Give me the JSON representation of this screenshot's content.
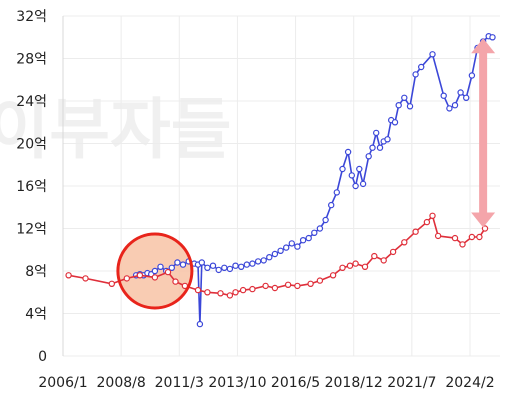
{
  "chart_data": {
    "type": "line",
    "title": "",
    "xlabel": "",
    "ylabel": "",
    "y_unit": "억",
    "ylim": [
      0,
      32
    ],
    "y_ticks": [
      0,
      4,
      8,
      12,
      16,
      20,
      24,
      28,
      32
    ],
    "y_tick_labels": [
      "0",
      "4억",
      "8억",
      "12억",
      "16억",
      "20억",
      "24억",
      "28억",
      "32억"
    ],
    "x_ticks": [
      "2006/1",
      "2008/8",
      "2011/3",
      "2013/10",
      "2016/5",
      "2018/12",
      "2021/7",
      "2024/2"
    ],
    "xlim": [
      "2006-01",
      "2025-06"
    ],
    "grid": true,
    "watermark": "이부자들",
    "colors": {
      "series_1": "#3b47d8",
      "series_2": "#df2f3a",
      "highlight_circle": "#e8241b",
      "highlight_fill": "#f8c3a6",
      "gap_arrow": "#f4a5aa"
    },
    "series": [
      {
        "name": "",
        "color": "#3b47d8",
        "points": [
          [
            "2009-04",
            7.6
          ],
          [
            "2009-06",
            7.7
          ],
          [
            "2009-08",
            7.6
          ],
          [
            "2009-10",
            7.8
          ],
          [
            "2009-12",
            7.7
          ],
          [
            "2010-02",
            8.0
          ],
          [
            "2010-05",
            8.4
          ],
          [
            "2010-08",
            8.0
          ],
          [
            "2010-11",
            8.3
          ],
          [
            "2011-02",
            8.8
          ],
          [
            "2011-05",
            8.6
          ],
          [
            "2011-08",
            8.9
          ],
          [
            "2011-11",
            8.7
          ],
          [
            "2012-01",
            8.6
          ],
          [
            "2012-02",
            3.0
          ],
          [
            "2012-03",
            8.8
          ],
          [
            "2012-06",
            8.3
          ],
          [
            "2012-09",
            8.5
          ],
          [
            "2012-12",
            8.1
          ],
          [
            "2013-03",
            8.3
          ],
          [
            "2013-06",
            8.2
          ],
          [
            "2013-09",
            8.5
          ],
          [
            "2013-12",
            8.4
          ],
          [
            "2014-03",
            8.6
          ],
          [
            "2014-06",
            8.7
          ],
          [
            "2014-09",
            8.9
          ],
          [
            "2014-12",
            9.0
          ],
          [
            "2015-03",
            9.3
          ],
          [
            "2015-06",
            9.6
          ],
          [
            "2015-09",
            9.9
          ],
          [
            "2015-12",
            10.2
          ],
          [
            "2016-03",
            10.6
          ],
          [
            "2016-06",
            10.3
          ],
          [
            "2016-09",
            10.9
          ],
          [
            "2016-12",
            11.1
          ],
          [
            "2017-03",
            11.6
          ],
          [
            "2017-06",
            12.0
          ],
          [
            "2017-09",
            12.8
          ],
          [
            "2017-12",
            14.2
          ],
          [
            "2018-03",
            15.4
          ],
          [
            "2018-06",
            17.6
          ],
          [
            "2018-09",
            19.2
          ],
          [
            "2018-11",
            17.0
          ],
          [
            "2019-01",
            16.0
          ],
          [
            "2019-03",
            17.6
          ],
          [
            "2019-05",
            16.2
          ],
          [
            "2019-08",
            18.8
          ],
          [
            "2019-10",
            19.6
          ],
          [
            "2019-12",
            21.0
          ],
          [
            "2020-02",
            19.6
          ],
          [
            "2020-04",
            20.2
          ],
          [
            "2020-06",
            20.4
          ],
          [
            "2020-08",
            22.2
          ],
          [
            "2020-10",
            22.0
          ],
          [
            "2020-12",
            23.6
          ],
          [
            "2021-03",
            24.3
          ],
          [
            "2021-06",
            23.5
          ],
          [
            "2021-09",
            26.5
          ],
          [
            "2021-12",
            27.2
          ],
          [
            "2022-06",
            28.4
          ],
          [
            "2022-12",
            24.5
          ],
          [
            "2023-03",
            23.3
          ],
          [
            "2023-06",
            23.6
          ],
          [
            "2023-09",
            24.8
          ],
          [
            "2023-12",
            24.3
          ],
          [
            "2024-03",
            26.4
          ],
          [
            "2024-06",
            29.0
          ],
          [
            "2024-09",
            29.6
          ],
          [
            "2024-12",
            30.1
          ],
          [
            "2025-02",
            30.0
          ]
        ]
      },
      {
        "name": "",
        "color": "#df2f3a",
        "points": [
          [
            "2006-04",
            7.6
          ],
          [
            "2007-01",
            7.3
          ],
          [
            "2008-03",
            6.8
          ],
          [
            "2008-11",
            7.3
          ],
          [
            "2009-06",
            7.6
          ],
          [
            "2010-02",
            7.4
          ],
          [
            "2010-09",
            7.9
          ],
          [
            "2011-01",
            7.0
          ],
          [
            "2011-06",
            6.6
          ],
          [
            "2012-01",
            6.2
          ],
          [
            "2012-06",
            6.0
          ],
          [
            "2013-01",
            5.9
          ],
          [
            "2013-06",
            5.7
          ],
          [
            "2013-09",
            6.0
          ],
          [
            "2014-01",
            6.2
          ],
          [
            "2014-06",
            6.3
          ],
          [
            "2015-01",
            6.6
          ],
          [
            "2015-06",
            6.4
          ],
          [
            "2016-01",
            6.7
          ],
          [
            "2016-06",
            6.6
          ],
          [
            "2017-01",
            6.8
          ],
          [
            "2017-06",
            7.1
          ],
          [
            "2018-01",
            7.6
          ],
          [
            "2018-06",
            8.3
          ],
          [
            "2018-10",
            8.5
          ],
          [
            "2019-01",
            8.7
          ],
          [
            "2019-06",
            8.4
          ],
          [
            "2019-11",
            9.4
          ],
          [
            "2020-04",
            9.0
          ],
          [
            "2020-09",
            9.8
          ],
          [
            "2021-03",
            10.7
          ],
          [
            "2021-09",
            11.7
          ],
          [
            "2022-03",
            12.6
          ],
          [
            "2022-06",
            13.2
          ],
          [
            "2022-09",
            11.3
          ],
          [
            "2023-06",
            11.1
          ],
          [
            "2023-10",
            10.5
          ],
          [
            "2024-03",
            11.2
          ],
          [
            "2024-07",
            11.2
          ],
          [
            "2024-10",
            12.0
          ]
        ]
      }
    ],
    "annotations": {
      "highlight_circle": {
        "x": "2010-02",
        "y": 8.0
      },
      "gap_arrow": {
        "x": "2024-09",
        "y_from": 12.0,
        "y_to": 30.0
      }
    }
  }
}
